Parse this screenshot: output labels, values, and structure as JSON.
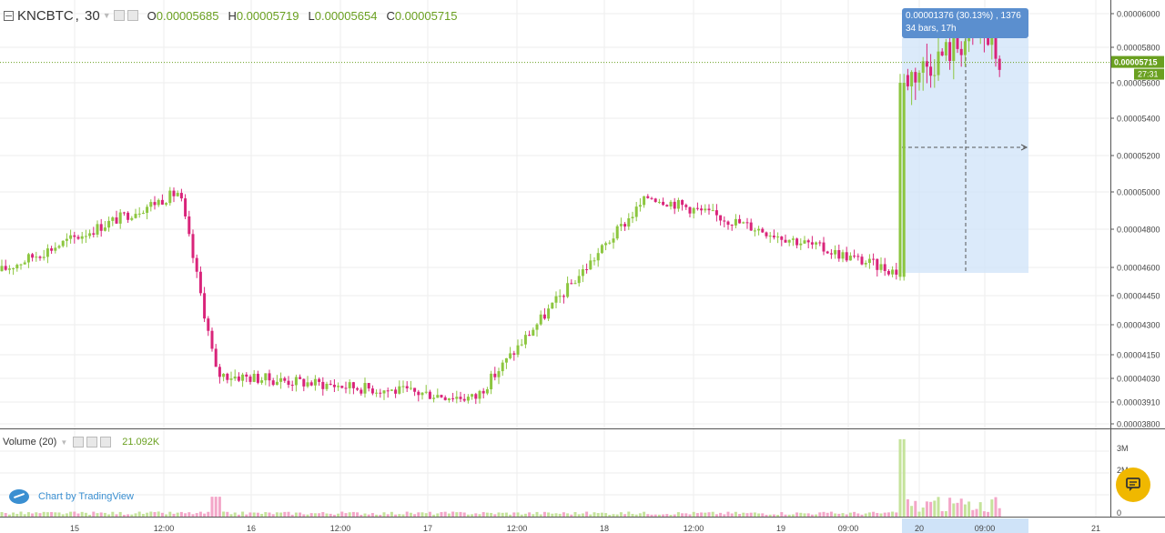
{
  "symbol": {
    "name": "KNCBTC",
    "interval": "30",
    "open_label": "O",
    "open": "0.00005685",
    "high_label": "H",
    "high": "0.00005719",
    "low_label": "L",
    "low": "0.00005654",
    "close_label": "C",
    "close": "0.00005715"
  },
  "price_axis": {
    "ticks": [
      "0.00006000",
      "0.00005800",
      "0.00005600",
      "0.00005400",
      "0.00005200",
      "0.00005000",
      "0.00004800",
      "0.00004600",
      "0.00004450",
      "0.00004300",
      "0.00004150",
      "0.00004030",
      "0.00003910",
      "0.00003800"
    ],
    "tick_values": [
      6e-05,
      5.8e-05,
      5.6e-05,
      5.4e-05,
      5.2e-05,
      5e-05,
      4.8e-05,
      4.6e-05,
      4.45e-05,
      4.3e-05,
      4.15e-05,
      4.03e-05,
      3.91e-05,
      3.8e-05
    ],
    "last_price_label": "0.00005715",
    "countdown_label": "27:31",
    "last_price_value": 5.715e-05
  },
  "volume_axis": {
    "ticks": [
      "3M",
      "2M",
      "0"
    ],
    "tick_values": [
      3000000,
      2000000,
      0
    ]
  },
  "time_axis": {
    "ticks": [
      "15",
      "12:00",
      "16",
      "12:00",
      "17",
      "12:00",
      "18",
      "12:00",
      "19",
      "09:00",
      "20",
      "09:00",
      "21"
    ]
  },
  "volume_indicator": {
    "label": "Volume (20)",
    "value": "21.092K"
  },
  "measure": {
    "line1": "0.00001376 (30.13%) , 1376",
    "line2": "34 bars, 17h"
  },
  "watermark": {
    "text": "Chart by TradingView"
  },
  "colors": {
    "up": "#8cc63f",
    "down": "#d9247a",
    "up_vol": "#c5e39b",
    "down_vol": "#f3a6c8",
    "price_line": "#6aa020",
    "measure_fill": "#cfe3f8",
    "measure_box": "#5b8fcf",
    "grid": "#eeeeee",
    "chat_button": "#f0b800"
  },
  "icons": [
    "collapse-icon",
    "dropdown-arrow-icon",
    "settings-icon",
    "chat-icon",
    "tradingview-logo-icon"
  ],
  "chart_data": {
    "type": "candlestick",
    "symbol": "KNCBTC",
    "interval_minutes": 30,
    "price_range": [
      3.78e-05,
      6.02e-05
    ],
    "key_points": [
      {
        "label": "start",
        "x": "15 00:00",
        "y": 4.58e-05
      },
      {
        "label": "peak",
        "x": "15 13:00",
        "y": 5e-05
      },
      {
        "label": "drop",
        "x": "15 17:00",
        "y": 4.05e-05
      },
      {
        "label": "low",
        "x": "17 04:00",
        "y": 3.93e-05
      },
      {
        "label": "rally",
        "x": "18 02:00",
        "y": 4.98e-05
      },
      {
        "label": "pre-pump",
        "x": "19 16:00",
        "y": 4.57e-05
      },
      {
        "label": "pump",
        "x": "19 16:30",
        "y": 5.62e-05
      },
      {
        "label": "high",
        "x": "20 09:00",
        "y": 5.9e-05
      },
      {
        "label": "last",
        "x": "20 10:00",
        "y": 5.715e-05
      }
    ],
    "volume_spike_value": 3500000,
    "volume_range": [
      0,
      3700000
    ]
  }
}
